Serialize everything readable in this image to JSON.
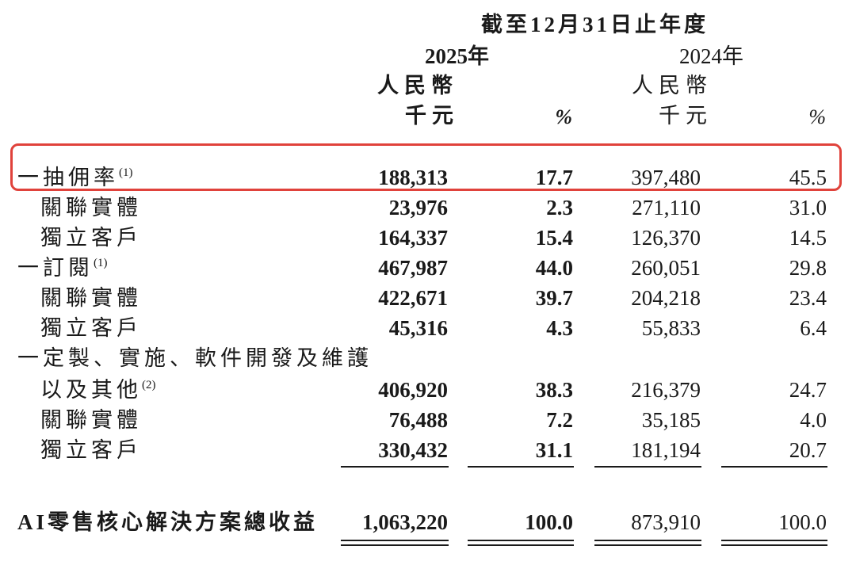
{
  "header": {
    "period": "截至12月31日止年度",
    "year_2025": "2025年",
    "year_2024": "2024年",
    "currency_2025": "人民幣",
    "unit_2025": "千元",
    "pct_2025": "%",
    "currency_2024": "人民幣",
    "unit_2024": "千元",
    "pct_2024": "%"
  },
  "rows": [
    {
      "label": "一抽佣率",
      "note": "(1)",
      "v2025": "188,313",
      "p2025": "17.7",
      "v2024": "397,480",
      "p2024": "45.5"
    },
    {
      "label": "關聯實體",
      "note": "",
      "v2025": "23,976",
      "p2025": "2.3",
      "v2024": "271,110",
      "p2024": "31.0"
    },
    {
      "label": "獨立客戶",
      "note": "",
      "v2025": "164,337",
      "p2025": "15.4",
      "v2024": "126,370",
      "p2024": "14.5"
    },
    {
      "label": "一訂閱",
      "note": "(1)",
      "v2025": "467,987",
      "p2025": "44.0",
      "v2024": "260,051",
      "p2024": "29.8"
    },
    {
      "label": "關聯實體",
      "note": "",
      "v2025": "422,671",
      "p2025": "39.7",
      "v2024": "204,218",
      "p2024": "23.4"
    },
    {
      "label": "獨立客戶",
      "note": "",
      "v2025": "45,316",
      "p2025": "4.3",
      "v2024": "55,833",
      "p2024": "6.4"
    },
    {
      "label": "一定製、實施、軟件開發及維護",
      "note": "",
      "v2025": "",
      "p2025": "",
      "v2024": "",
      "p2024": ""
    },
    {
      "label": "以及其他",
      "note": "(2)",
      "v2025": "406,920",
      "p2025": "38.3",
      "v2024": "216,379",
      "p2024": "24.7"
    },
    {
      "label": "關聯實體",
      "note": "",
      "v2025": "76,488",
      "p2025": "7.2",
      "v2024": "35,185",
      "p2024": "4.0"
    },
    {
      "label": "獨立客戶",
      "note": "",
      "v2025": "330,432",
      "p2025": "31.1",
      "v2024": "181,194",
      "p2024": "20.7"
    }
  ],
  "total": {
    "label": "AI零售核心解決方案總收益",
    "v2025": "1,063,220",
    "p2025": "100.0",
    "v2024": "873,910",
    "p2024": "100.0"
  },
  "highlight_color": "#e0423b"
}
